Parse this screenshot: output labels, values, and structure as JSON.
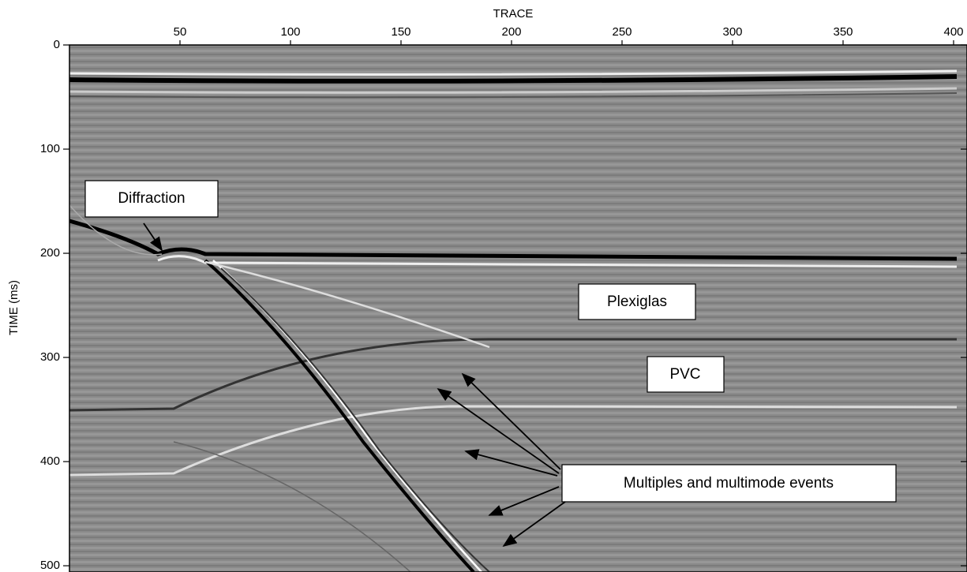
{
  "chart_data": {
    "type": "seismic",
    "xlabel": "TRACE",
    "ylabel": "TIME (ms)",
    "xlim": [
      0,
      400
    ],
    "xticks": [
      50,
      100,
      150,
      200,
      250,
      300,
      350,
      400
    ],
    "ylim": [
      0,
      506
    ],
    "yticks": [
      0,
      100,
      200,
      300,
      400,
      500
    ],
    "annotations": [
      "Diffraction",
      "Plexiglas",
      "PVC",
      "Multiples and multimode events"
    ]
  }
}
